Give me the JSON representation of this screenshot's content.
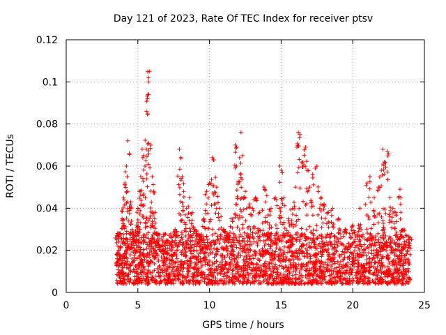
{
  "chart_data": {
    "type": "scatter",
    "title": "Day 121 of 2023, Rate Of TEC Index for receiver ptsv",
    "xlabel": "GPS time / hours",
    "ylabel": "ROTI / TECUs",
    "xlim": [
      0,
      25
    ],
    "ylim": [
      0,
      0.12
    ],
    "x_ticks": [
      0,
      5,
      10,
      15,
      20,
      25
    ],
    "x_tick_labels": [
      "0",
      "5",
      "10",
      "15",
      "20",
      "25"
    ],
    "y_ticks": [
      0,
      0.02,
      0.04,
      0.06,
      0.08,
      0.1,
      0.12
    ],
    "y_tick_labels": [
      "0",
      "0.02",
      "0.04",
      "0.06",
      "0.08",
      "0.1",
      "0.12"
    ],
    "grid": true,
    "marker": "+",
    "series": [
      {
        "color": "#ff0000",
        "points": [
          [
            3.5,
            0.014
          ],
          [
            3.6,
            0.022
          ],
          [
            3.7,
            0.028
          ],
          [
            3.8,
            0.018
          ],
          [
            3.9,
            0.035
          ],
          [
            4.0,
            0.045
          ],
          [
            4.1,
            0.052
          ],
          [
            4.2,
            0.06
          ],
          [
            4.3,
            0.072
          ],
          [
            4.4,
            0.066
          ],
          [
            4.5,
            0.042
          ],
          [
            4.6,
            0.03
          ],
          [
            4.7,
            0.025
          ],
          [
            4.8,
            0.02
          ],
          [
            4.9,
            0.032
          ],
          [
            5.0,
            0.04
          ],
          [
            5.1,
            0.048
          ],
          [
            5.2,
            0.055
          ],
          [
            5.3,
            0.068
          ],
          [
            5.4,
            0.065
          ],
          [
            5.5,
            0.06
          ],
          [
            5.6,
            0.086
          ],
          [
            5.7,
            0.094
          ],
          [
            5.75,
            0.1
          ],
          [
            5.8,
            0.105
          ],
          [
            5.9,
            0.07
          ],
          [
            6.0,
            0.055
          ],
          [
            6.1,
            0.048
          ],
          [
            6.2,
            0.038
          ],
          [
            6.3,
            0.028
          ],
          [
            6.5,
            0.022
          ],
          [
            6.8,
            0.018
          ],
          [
            7.0,
            0.015
          ],
          [
            7.3,
            0.02
          ],
          [
            7.6,
            0.03
          ],
          [
            7.9,
            0.068
          ],
          [
            8.0,
            0.064
          ],
          [
            8.1,
            0.055
          ],
          [
            8.2,
            0.048
          ],
          [
            8.4,
            0.04
          ],
          [
            8.6,
            0.045
          ],
          [
            8.8,
            0.038
          ],
          [
            9.0,
            0.03
          ],
          [
            9.3,
            0.025
          ],
          [
            9.6,
            0.035
          ],
          [
            9.8,
            0.048
          ],
          [
            10.0,
            0.052
          ],
          [
            10.2,
            0.064
          ],
          [
            10.3,
            0.063
          ],
          [
            10.5,
            0.05
          ],
          [
            10.7,
            0.04
          ],
          [
            11.0,
            0.03
          ],
          [
            11.3,
            0.025
          ],
          [
            11.5,
            0.035
          ],
          [
            11.8,
            0.07
          ],
          [
            11.9,
            0.069
          ],
          [
            12.0,
            0.052
          ],
          [
            12.1,
            0.064
          ],
          [
            12.2,
            0.076
          ],
          [
            12.3,
            0.065
          ],
          [
            12.5,
            0.048
          ],
          [
            12.8,
            0.042
          ],
          [
            13.0,
            0.04
          ],
          [
            13.2,
            0.045
          ],
          [
            13.5,
            0.038
          ],
          [
            13.8,
            0.05
          ],
          [
            14.0,
            0.046
          ],
          [
            14.3,
            0.04
          ],
          [
            14.6,
            0.045
          ],
          [
            14.9,
            0.06
          ],
          [
            15.0,
            0.058
          ],
          [
            15.2,
            0.045
          ],
          [
            15.5,
            0.035
          ],
          [
            15.8,
            0.04
          ],
          [
            16.0,
            0.05
          ],
          [
            16.2,
            0.076
          ],
          [
            16.3,
            0.075
          ],
          [
            16.5,
            0.062
          ],
          [
            16.7,
            0.069
          ],
          [
            16.8,
            0.058
          ],
          [
            17.0,
            0.05
          ],
          [
            17.2,
            0.056
          ],
          [
            17.5,
            0.06
          ],
          [
            17.8,
            0.045
          ],
          [
            18.0,
            0.042
          ],
          [
            18.3,
            0.038
          ],
          [
            18.6,
            0.04
          ],
          [
            19.0,
            0.035
          ],
          [
            19.5,
            0.03
          ],
          [
            20.0,
            0.032
          ],
          [
            20.5,
            0.04
          ],
          [
            21.0,
            0.052
          ],
          [
            21.2,
            0.055
          ],
          [
            21.5,
            0.045
          ],
          [
            21.8,
            0.05
          ],
          [
            22.0,
            0.058
          ],
          [
            22.1,
            0.068
          ],
          [
            22.2,
            0.062
          ],
          [
            22.4,
            0.067
          ],
          [
            22.6,
            0.045
          ],
          [
            22.8,
            0.04
          ],
          [
            23.0,
            0.038
          ],
          [
            23.3,
            0.049
          ],
          [
            23.5,
            0.03
          ],
          [
            23.8,
            0.02
          ],
          [
            24.0,
            0.018
          ]
        ]
      }
    ],
    "band": {
      "x_start": 3.5,
      "x_end": 24.0,
      "y_low": 0.004,
      "y_high": 0.028
    }
  }
}
